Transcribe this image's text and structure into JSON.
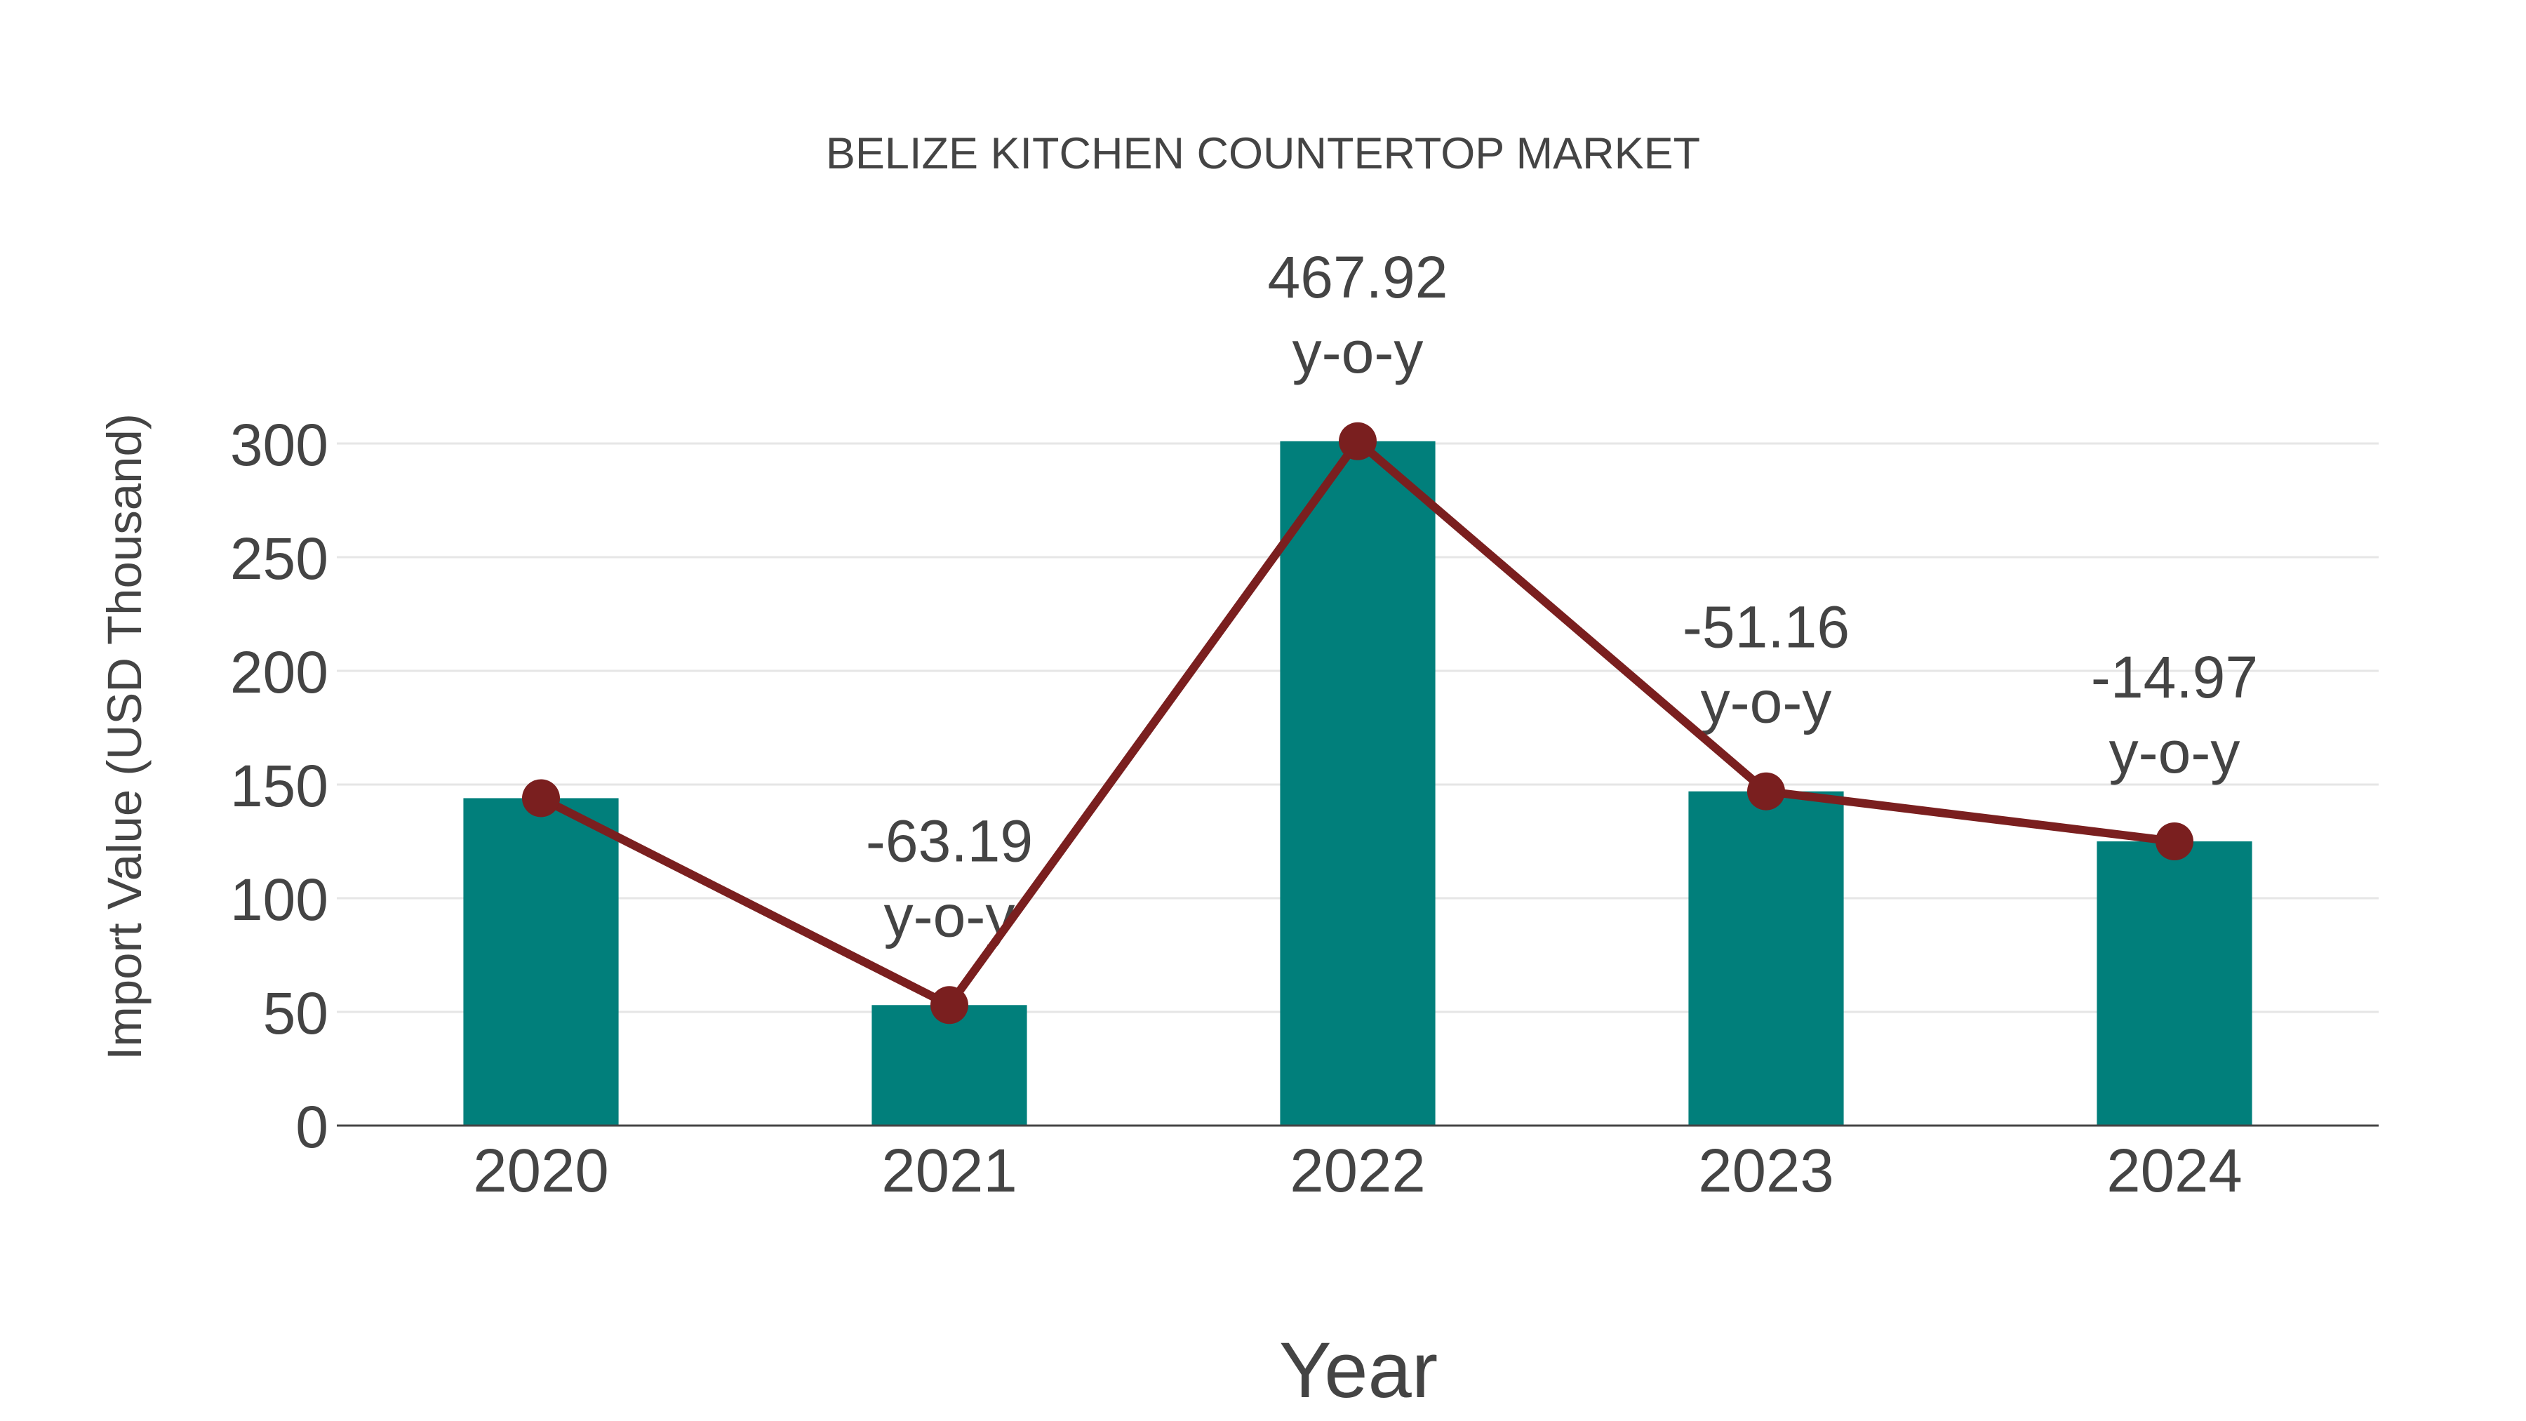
{
  "chart_data": {
    "type": "bar",
    "title": "BELIZE KITCHEN COUNTERTOP MARKET",
    "xlabel": "Year",
    "ylabel": "Import Value (USD Thousand)",
    "categories": [
      "2020",
      "2021",
      "2022",
      "2023",
      "2024"
    ],
    "series": [
      {
        "name": "Import Value",
        "type": "bar",
        "color": "#017F7B",
        "values": [
          144,
          53,
          301,
          147,
          125
        ]
      },
      {
        "name": "Import Value (trend line)",
        "type": "line",
        "color": "#7A1F1F",
        "values": [
          144,
          53,
          301,
          147,
          125
        ]
      }
    ],
    "annotations": [
      {
        "category": "2020",
        "value": null,
        "line1": "",
        "line2": ""
      },
      {
        "category": "2021",
        "value": -63.19,
        "line1": "-63.19",
        "line2": "y-o-y"
      },
      {
        "category": "2022",
        "value": 467.92,
        "line1": "467.92",
        "line2": "y-o-y"
      },
      {
        "category": "2023",
        "value": -51.16,
        "line1": "-51.16",
        "line2": "y-o-y"
      },
      {
        "category": "2024",
        "value": -14.97,
        "line1": "-14.97",
        "line2": "y-o-y"
      }
    ],
    "yticks": [
      0,
      50,
      100,
      150,
      200,
      250,
      300
    ],
    "ylim": [
      0,
      300
    ],
    "grid": true,
    "legend": "none"
  },
  "colors": {
    "bar": "#017F7B",
    "line": "#7A1F1F",
    "text": "#444444",
    "grid": "#E6E6E6",
    "axis": "#444444",
    "background": "#FFFFFF"
  }
}
